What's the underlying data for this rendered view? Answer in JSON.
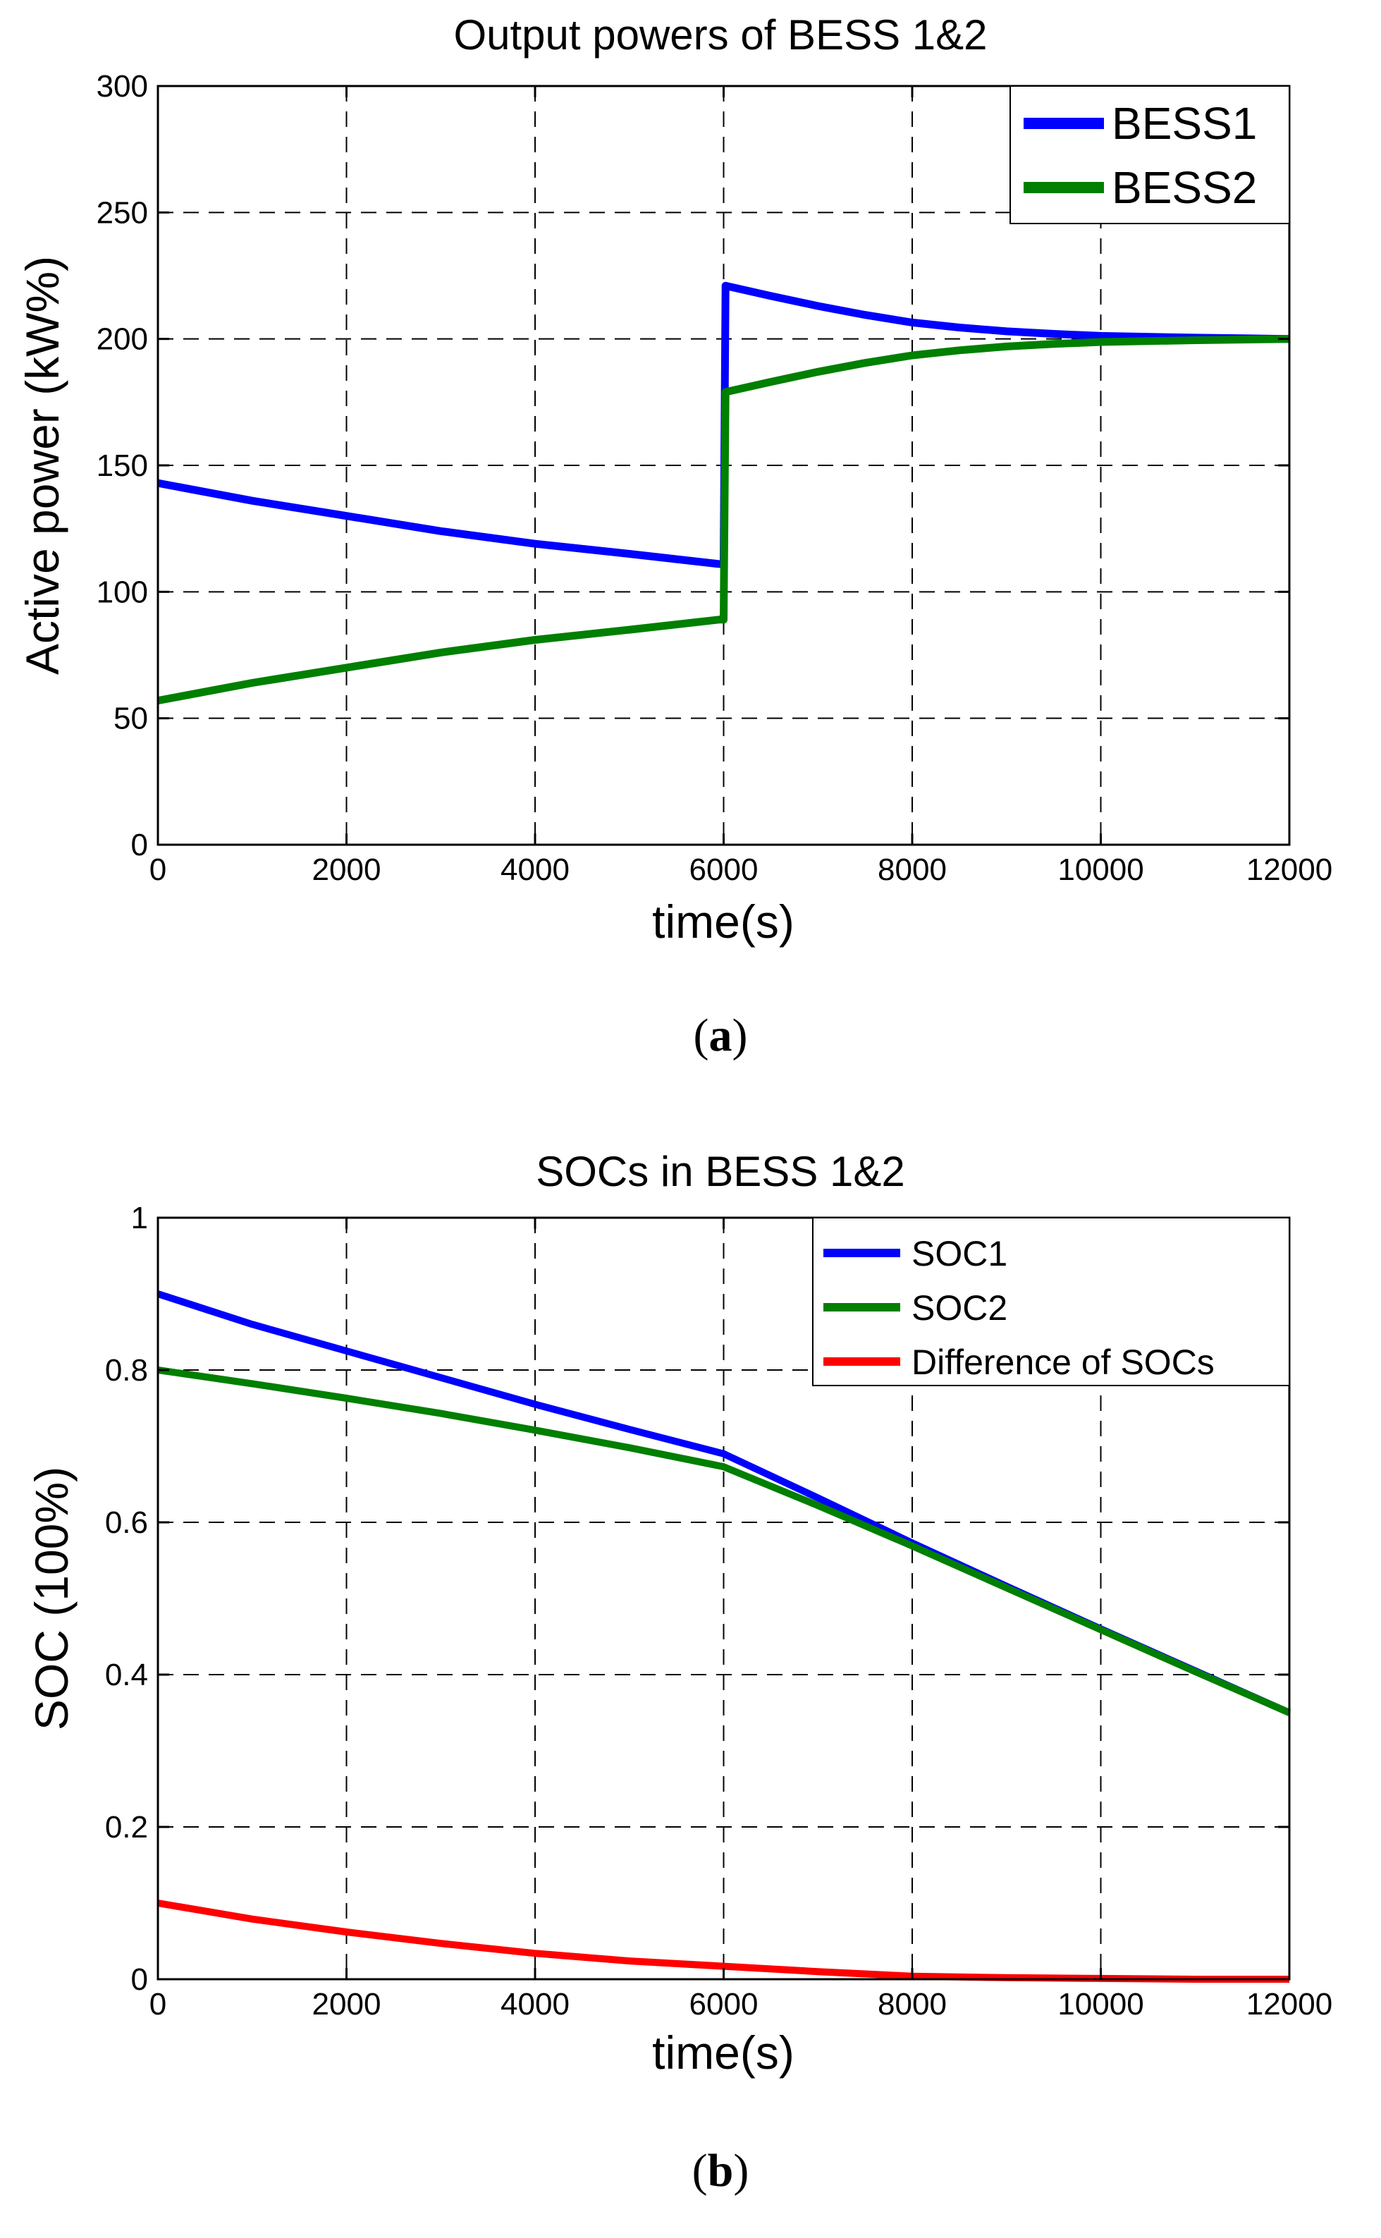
{
  "chart_data": [
    {
      "type": "line",
      "title": "Output powers of BESS 1&2",
      "xlabel": "time(s)",
      "ylabel": "Active power (kW%)",
      "xlim": [
        0,
        12000
      ],
      "ylim": [
        0,
        300
      ],
      "xticks": [
        0,
        2000,
        4000,
        6000,
        8000,
        10000,
        12000
      ],
      "xtick_labels": [
        "0",
        "2000",
        "4000",
        "6000",
        "8000",
        "10000",
        "12000"
      ],
      "yticks": [
        0,
        50,
        100,
        150,
        200,
        250,
        300
      ],
      "ytick_labels": [
        "0",
        "50",
        "100",
        "150",
        "200",
        "250",
        "300"
      ],
      "grid": true,
      "legend_position": "top-right",
      "caption_letter": "a",
      "series": [
        {
          "name": "BESS1",
          "color": "#0000ff",
          "points": [
            [
              0,
              143
            ],
            [
              1000,
              136
            ],
            [
              2000,
              130
            ],
            [
              3000,
              124
            ],
            [
              4000,
              119
            ],
            [
              5000,
              115
            ],
            [
              5950,
              111
            ],
            [
              6000,
              111
            ],
            [
              6020,
              221
            ],
            [
              6500,
              217
            ],
            [
              7000,
              213
            ],
            [
              7500,
              209.5
            ],
            [
              8000,
              206.5
            ],
            [
              8500,
              204.5
            ],
            [
              9000,
              203
            ],
            [
              9500,
              202
            ],
            [
              10000,
              201.2
            ],
            [
              11000,
              200.5
            ],
            [
              12000,
              200
            ]
          ]
        },
        {
          "name": "BESS2",
          "color": "#007f00",
          "points": [
            [
              0,
              57
            ],
            [
              1000,
              64
            ],
            [
              2000,
              70
            ],
            [
              3000,
              76
            ],
            [
              4000,
              81
            ],
            [
              5000,
              85
            ],
            [
              5950,
              89
            ],
            [
              6000,
              89
            ],
            [
              6020,
              179
            ],
            [
              6500,
              183
            ],
            [
              7000,
              187
            ],
            [
              7500,
              190.5
            ],
            [
              8000,
              193.5
            ],
            [
              8500,
              195.5
            ],
            [
              9000,
              197
            ],
            [
              9500,
              198
            ],
            [
              10000,
              198.8
            ],
            [
              11000,
              199.5
            ],
            [
              12000,
              200
            ]
          ]
        }
      ]
    },
    {
      "type": "line",
      "title": "SOCs in BESS 1&2",
      "xlabel": "time(s)",
      "ylabel": "SOC (100%)",
      "xlim": [
        0,
        12000
      ],
      "ylim": [
        0,
        1
      ],
      "xticks": [
        0,
        2000,
        4000,
        6000,
        8000,
        10000,
        12000
      ],
      "xtick_labels": [
        "0",
        "2000",
        "4000",
        "6000",
        "8000",
        "10000",
        "12000"
      ],
      "yticks": [
        0,
        0.2,
        0.4,
        0.6,
        0.8,
        1
      ],
      "ytick_labels": [
        "0",
        "0.2",
        "0.4",
        "0.6",
        "0.8",
        "1"
      ],
      "grid": true,
      "legend_position": "top-right",
      "caption_letter": "b",
      "series": [
        {
          "name": "SOC1",
          "color": "#0000ff",
          "points": [
            [
              0,
              0.9
            ],
            [
              1000,
              0.86
            ],
            [
              2000,
              0.825
            ],
            [
              3000,
              0.79
            ],
            [
              4000,
              0.755
            ],
            [
              5000,
              0.722
            ],
            [
              6000,
              0.69
            ],
            [
              7000,
              0.632
            ],
            [
              8000,
              0.573
            ],
            [
              9000,
              0.516
            ],
            [
              10000,
              0.46
            ],
            [
              11000,
              0.405
            ],
            [
              12000,
              0.35
            ]
          ]
        },
        {
          "name": "SOC2",
          "color": "#007f00",
          "points": [
            [
              0,
              0.8
            ],
            [
              1000,
              0.782
            ],
            [
              2000,
              0.763
            ],
            [
              3000,
              0.743
            ],
            [
              4000,
              0.721
            ],
            [
              5000,
              0.698
            ],
            [
              6000,
              0.673
            ],
            [
              7000,
              0.622
            ],
            [
              8000,
              0.569
            ],
            [
              9000,
              0.514
            ],
            [
              10000,
              0.459
            ],
            [
              11000,
              0.404
            ],
            [
              12000,
              0.35
            ]
          ]
        },
        {
          "name": "Difference of SOCs",
          "color": "#ff0000",
          "points": [
            [
              0,
              0.1
            ],
            [
              1000,
              0.079
            ],
            [
              2000,
              0.062
            ],
            [
              3000,
              0.047
            ],
            [
              4000,
              0.034
            ],
            [
              5000,
              0.024
            ],
            [
              6000,
              0.017
            ],
            [
              7000,
              0.01
            ],
            [
              8000,
              0.004
            ],
            [
              9000,
              0.002
            ],
            [
              10000,
              0.001
            ],
            [
              11000,
              0.0
            ],
            [
              12000,
              0.0
            ]
          ]
        }
      ]
    }
  ]
}
